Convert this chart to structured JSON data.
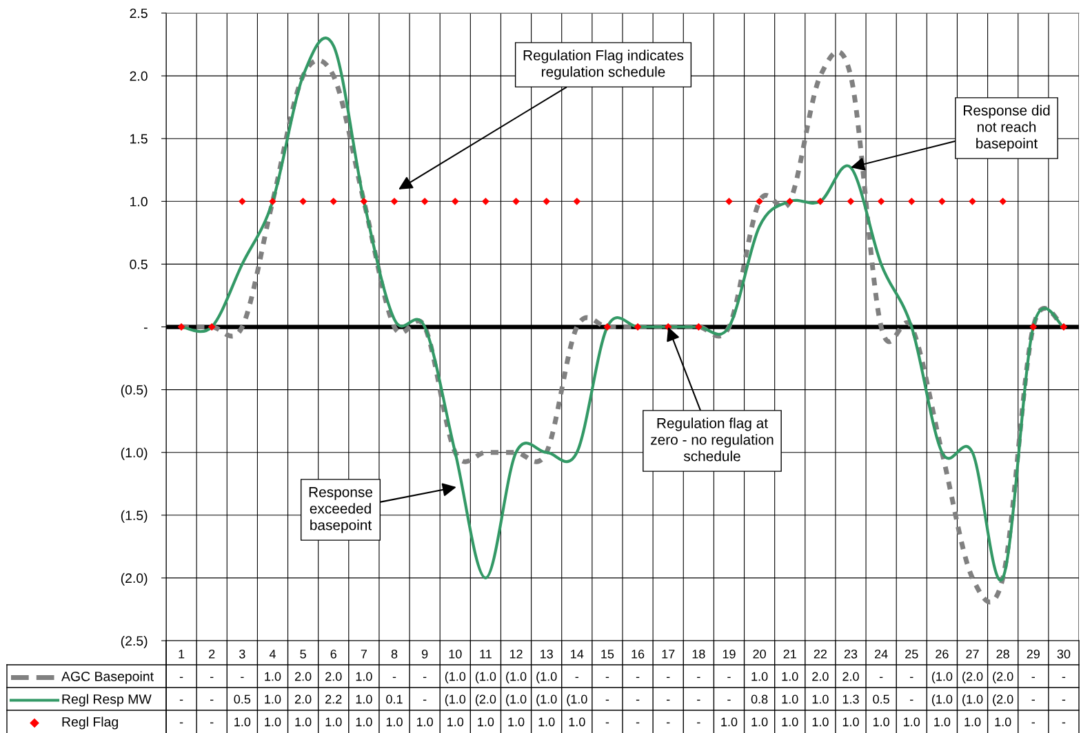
{
  "chart_data": {
    "type": "line",
    "categories": [
      "1",
      "2",
      "3",
      "4",
      "5",
      "6",
      "7",
      "8",
      "9",
      "10",
      "11",
      "12",
      "13",
      "14",
      "15",
      "16",
      "17",
      "18",
      "19",
      "20",
      "21",
      "22",
      "23",
      "24",
      "25",
      "26",
      "27",
      "28",
      "29",
      "30"
    ],
    "series": [
      {
        "name": "AGC Basepoint",
        "color": "#808080",
        "line_style": "dashed",
        "marker": "none",
        "values": [
          0,
          0,
          0,
          1.0,
          2.0,
          2.0,
          1.0,
          0,
          0,
          -1.0,
          -1.0,
          -1.0,
          -1.0,
          0,
          0,
          0,
          0,
          0,
          0,
          1.0,
          1.0,
          2.0,
          2.0,
          0,
          0,
          -1.0,
          -2.0,
          -2.0,
          0,
          0
        ],
        "value_labels": [
          "-",
          "-",
          "-",
          "1.0",
          "2.0",
          "2.0",
          "1.0",
          "-",
          "-",
          "(1.0",
          "(1.0",
          "(1.0",
          "(1.0",
          "-",
          "-",
          "-",
          "-",
          "-",
          "-",
          "1.0",
          "1.0",
          "2.0",
          "2.0",
          "-",
          "-",
          "(1.0",
          "(2.0",
          "(2.0",
          "-",
          "-"
        ]
      },
      {
        "name": "Regl Resp MW",
        "color": "#339966",
        "line_style": "solid",
        "marker": "none",
        "values": [
          0,
          0,
          0.5,
          1.0,
          2.0,
          2.24,
          1.0,
          0.06,
          0,
          -1.0,
          -2.0,
          -1.0,
          -1.0,
          -1.0,
          0,
          0,
          0,
          0,
          0,
          0.8,
          1.0,
          1.0,
          1.27,
          0.5,
          0,
          -1.0,
          -1.0,
          -2.0,
          0,
          0
        ],
        "value_labels": [
          "-",
          "-",
          "0.5",
          "1.0",
          "2.0",
          "2.2",
          "1.0",
          "0.1",
          "-",
          "(1.0",
          "(2.0",
          "(1.0",
          "(1.0",
          "(1.0",
          "-",
          "-",
          "-",
          "-",
          "-",
          "0.8",
          "1.0",
          "1.0",
          "1.3",
          "0.5",
          "-",
          "(1.0",
          "(1.0",
          "(2.0",
          "-",
          "-"
        ]
      },
      {
        "name": "Regl Flag",
        "type": "scatter",
        "color": "#ff0000",
        "marker": "diamond",
        "values": [
          0,
          0,
          1.0,
          1.0,
          1.0,
          1.0,
          1.0,
          1.0,
          1.0,
          1.0,
          1.0,
          1.0,
          1.0,
          1.0,
          0,
          0,
          0,
          0,
          1.0,
          1.0,
          1.0,
          1.0,
          1.0,
          1.0,
          1.0,
          1.0,
          1.0,
          1.0,
          0,
          0
        ],
        "value_labels": [
          "-",
          "-",
          "1.0",
          "1.0",
          "1.0",
          "1.0",
          "1.0",
          "1.0",
          "1.0",
          "1.0",
          "1.0",
          "1.0",
          "1.0",
          "1.0",
          "-",
          "-",
          "-",
          "-",
          "1.0",
          "1.0",
          "1.0",
          "1.0",
          "1.0",
          "1.0",
          "1.0",
          "1.0",
          "1.0",
          "1.0",
          "-",
          "-"
        ]
      }
    ],
    "ylim": [
      -2.5,
      2.5
    ],
    "yticks": [
      {
        "value": -2.5,
        "label": "(2.5)"
      },
      {
        "value": -2.0,
        "label": "(2.0)"
      },
      {
        "value": -1.5,
        "label": "(1.5)"
      },
      {
        "value": -1.0,
        "label": "(1.0)"
      },
      {
        "value": -0.5,
        "label": "(0.5)"
      },
      {
        "value": 0,
        "label": "-"
      },
      {
        "value": 0.5,
        "label": "0.5"
      },
      {
        "value": 1.0,
        "label": "1.0"
      },
      {
        "value": 1.5,
        "label": "1.5"
      },
      {
        "value": 2.0,
        "label": "2.0"
      },
      {
        "value": 2.5,
        "label": "2.5"
      }
    ],
    "ref_lines": [
      {
        "axis": "y",
        "value": 0,
        "color": "#000000"
      }
    ],
    "grid": true,
    "legend": "bottom",
    "annotations": [
      "Regulation Flag indicates\nregulation schedule",
      {
        "text": "Response did\nnot reach\nbasepoint",
        "x": "23",
        "y": 1.27
      },
      {
        "text": "Regulation flag at\nzero - no regulation\nschedule",
        "x": "17",
        "y": 0
      },
      "Response\nexceeded\nbasepoint"
    ]
  }
}
